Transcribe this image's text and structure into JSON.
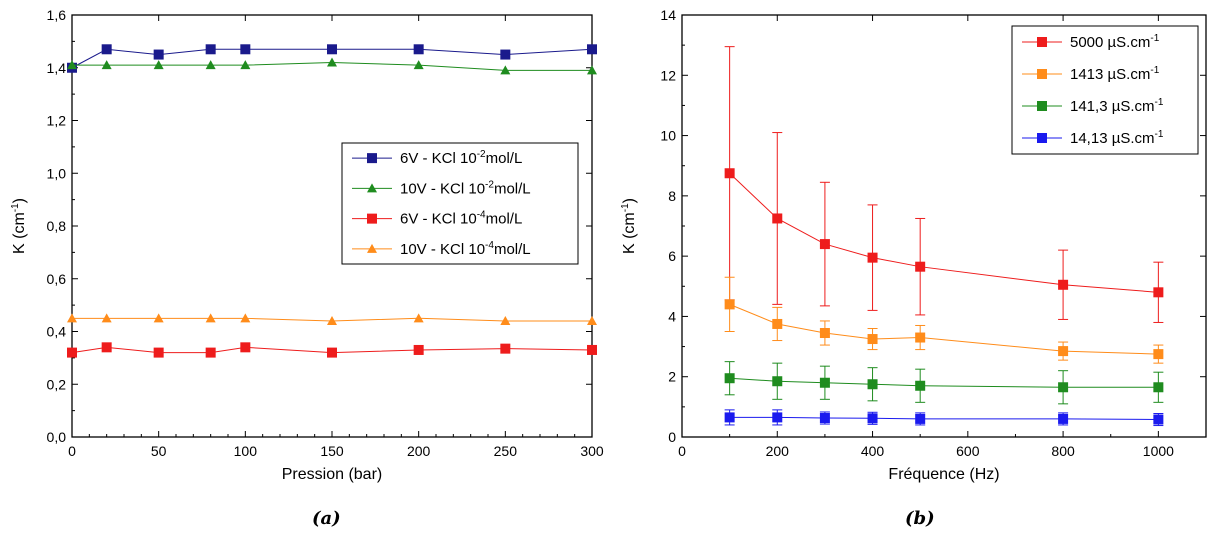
{
  "captions": {
    "a": "(a)",
    "b": "(b)"
  },
  "chart_data": [
    {
      "type": "line",
      "xlabel": "Pression (bar)",
      "ylabel": {
        "base": "K (cm",
        "exp": "-1",
        "close": ")"
      },
      "xlim": [
        0,
        300
      ],
      "ylim": [
        0,
        1.6
      ],
      "xticks": [
        0,
        50,
        100,
        150,
        200,
        250,
        300
      ],
      "yticks": [
        0,
        0.2,
        0.4,
        0.6,
        0.8,
        1.0,
        1.2,
        1.4,
        1.6
      ],
      "xtick_labels": [
        "0",
        "50",
        "100",
        "150",
        "200",
        "250",
        "300"
      ],
      "ytick_labels": [
        "0,0",
        "0,2",
        "0,4",
        "0,6",
        "0,8",
        "1,0",
        "1,2",
        "1,4",
        "1,6"
      ],
      "legend_position": "middle-right",
      "series": [
        {
          "name": {
            "pre": "6V   - KCl 10",
            "exp": "-2",
            "post": "mol/L"
          },
          "color": "#1a1a8c",
          "marker": "square",
          "x": [
            0,
            20,
            50,
            80,
            100,
            150,
            200,
            250,
            300
          ],
          "y": [
            1.4,
            1.47,
            1.45,
            1.47,
            1.47,
            1.47,
            1.47,
            1.45,
            1.47
          ]
        },
        {
          "name": {
            "pre": "10V  - KCl 10",
            "exp": "-2",
            "post": "mol/L"
          },
          "color": "#1f8c1f",
          "marker": "triangle",
          "x": [
            0,
            20,
            50,
            80,
            100,
            150,
            200,
            250,
            300
          ],
          "y": [
            1.41,
            1.41,
            1.41,
            1.41,
            1.41,
            1.42,
            1.41,
            1.39,
            1.39
          ]
        },
        {
          "name": {
            "pre": "6V   - KCl 10",
            "exp": "-4",
            "post": "mol/L"
          },
          "color": "#ee1c1c",
          "marker": "square",
          "x": [
            0,
            20,
            50,
            80,
            100,
            150,
            200,
            250,
            300
          ],
          "y": [
            0.32,
            0.34,
            0.32,
            0.32,
            0.34,
            0.32,
            0.33,
            0.335,
            0.33
          ]
        },
        {
          "name": {
            "pre": "10V  - KCl 10",
            "exp": "-4",
            "post": "mol/L"
          },
          "color": "#ff8c1a",
          "marker": "triangle",
          "x": [
            0,
            20,
            50,
            80,
            100,
            150,
            200,
            250,
            300
          ],
          "y": [
            0.45,
            0.45,
            0.45,
            0.45,
            0.45,
            0.44,
            0.45,
            0.44,
            0.44
          ]
        }
      ]
    },
    {
      "type": "line",
      "xlabel": "Fréquence (Hz)",
      "ylabel": {
        "base": "K (cm",
        "exp": "-1",
        "close": ")"
      },
      "xlim": [
        0,
        1100
      ],
      "ylim": [
        0,
        14
      ],
      "xticks": [
        0,
        200,
        400,
        600,
        800,
        1000
      ],
      "yticks": [
        0,
        2,
        4,
        6,
        8,
        10,
        12,
        14
      ],
      "xtick_labels": [
        "0",
        "200",
        "400",
        "600",
        "800",
        "1000"
      ],
      "ytick_labels": [
        "0",
        "2",
        "4",
        "6",
        "8",
        "10",
        "12",
        "14"
      ],
      "legend_position": "top-right",
      "series": [
        {
          "name": {
            "pre": "5000 µS.cm",
            "exp": "-1",
            "post": ""
          },
          "color": "#ee1c1c",
          "marker": "square",
          "x": [
            100,
            200,
            300,
            400,
            500,
            800,
            1000
          ],
          "y": [
            8.75,
            7.25,
            6.4,
            5.95,
            5.65,
            5.05,
            4.8
          ],
          "err": [
            4.2,
            2.85,
            2.05,
            1.75,
            1.6,
            1.15,
            1.0
          ]
        },
        {
          "name": {
            "pre": "1413 µS.cm",
            "exp": "-1",
            "post": ""
          },
          "color": "#ff8c1a",
          "marker": "square",
          "x": [
            100,
            200,
            300,
            400,
            500,
            800,
            1000
          ],
          "y": [
            4.4,
            3.75,
            3.45,
            3.25,
            3.3,
            2.85,
            2.75
          ],
          "err": [
            0.9,
            0.55,
            0.4,
            0.35,
            0.4,
            0.3,
            0.3
          ]
        },
        {
          "name": {
            "pre": "141,3 µS.cm",
            "exp": "-1",
            "post": ""
          },
          "color": "#1f8c1f",
          "marker": "square",
          "x": [
            100,
            200,
            300,
            400,
            500,
            800,
            1000
          ],
          "y": [
            1.95,
            1.85,
            1.8,
            1.75,
            1.7,
            1.65,
            1.65
          ],
          "err": [
            0.55,
            0.6,
            0.55,
            0.55,
            0.55,
            0.55,
            0.5
          ]
        },
        {
          "name": {
            "pre": "14,13 µS.cm",
            "exp": "-1",
            "post": ""
          },
          "color": "#1a1aee",
          "marker": "square",
          "x": [
            100,
            200,
            300,
            400,
            500,
            800,
            1000
          ],
          "y": [
            0.65,
            0.65,
            0.63,
            0.62,
            0.6,
            0.6,
            0.58
          ],
          "err": [
            0.25,
            0.25,
            0.2,
            0.2,
            0.2,
            0.2,
            0.2
          ]
        }
      ]
    }
  ]
}
